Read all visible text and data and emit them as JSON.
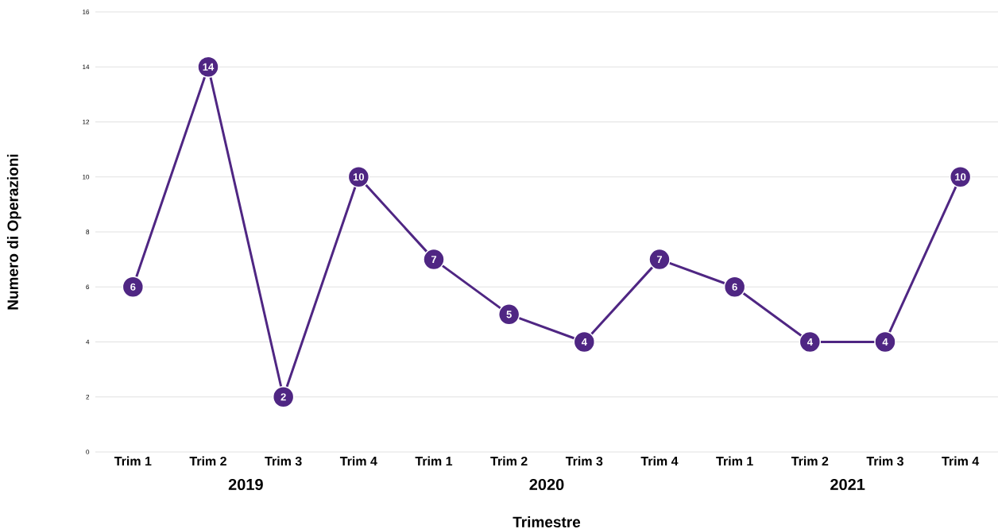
{
  "chart_data": {
    "type": "line",
    "categories": [
      "Trim 1",
      "Trim 2",
      "Trim 3",
      "Trim 4",
      "Trim 1",
      "Trim 2",
      "Trim 3",
      "Trim 4",
      "Trim 1",
      "Trim 2",
      "Trim 3",
      "Trim 4"
    ],
    "values": [
      6,
      14,
      2,
      10,
      7,
      5,
      4,
      7,
      6,
      4,
      4,
      10
    ],
    "color": "#4f2683",
    "xlabel": "Trimestre",
    "ylabel": "Numero di Operazioni",
    "annotations": [
      "2019",
      "2020",
      "2021"
    ],
    "ylim": [
      0,
      16
    ],
    "yticks": [
      0,
      2,
      4,
      6,
      8,
      10,
      12,
      14,
      16
    ],
    "grid": "y",
    "marker": "circle",
    "line_style": "solid",
    "data_labels": true
  }
}
